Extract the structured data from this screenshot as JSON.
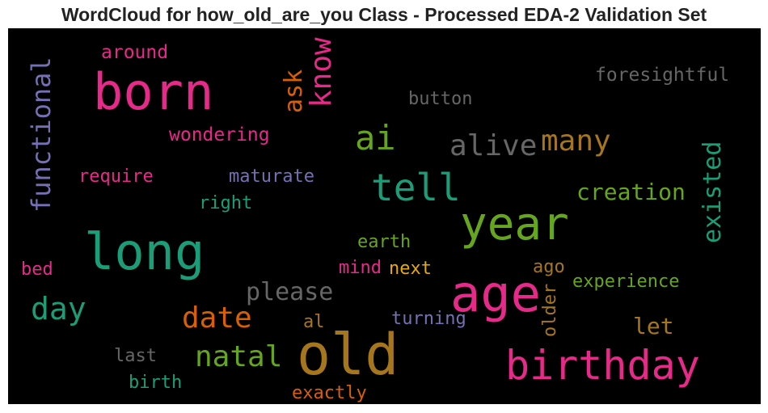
{
  "title": "WordCloud for how_old_are_you Class - Processed EDA-2 Validation Set",
  "words": [
    {
      "text": "born",
      "color": "#e7298a"
    },
    {
      "text": "around",
      "color": "#e7298a"
    },
    {
      "text": "functional",
      "color": "#7570b3"
    },
    {
      "text": "ask",
      "color": "#d95f02"
    },
    {
      "text": "know",
      "color": "#e7298a"
    },
    {
      "text": "button",
      "color": "#666666"
    },
    {
      "text": "foresightful",
      "color": "#666666"
    },
    {
      "text": "wondering",
      "color": "#e7298a"
    },
    {
      "text": "ai",
      "color": "#66a61e"
    },
    {
      "text": "alive",
      "color": "#666666"
    },
    {
      "text": "many",
      "color": "#a6761d"
    },
    {
      "text": "require",
      "color": "#e7298a"
    },
    {
      "text": "maturate",
      "color": "#7570b3"
    },
    {
      "text": "tell",
      "color": "#1b9e77"
    },
    {
      "text": "creation",
      "color": "#66a61e"
    },
    {
      "text": "existed",
      "color": "#1b9e77"
    },
    {
      "text": "right",
      "color": "#1b9e77"
    },
    {
      "text": "year",
      "color": "#66a61e"
    },
    {
      "text": "long",
      "color": "#1b9e77"
    },
    {
      "text": "earth",
      "color": "#66a61e"
    },
    {
      "text": "bed",
      "color": "#e7298a"
    },
    {
      "text": "mind",
      "color": "#e7298a"
    },
    {
      "text": "next",
      "color": "#e6ab02"
    },
    {
      "text": "ago",
      "color": "#a6761d"
    },
    {
      "text": "age",
      "color": "#e7298a"
    },
    {
      "text": "please",
      "color": "#666666"
    },
    {
      "text": "day",
      "color": "#1b9e77"
    },
    {
      "text": "experience",
      "color": "#66a61e"
    },
    {
      "text": "older",
      "color": "#a6761d"
    },
    {
      "text": "date",
      "color": "#d95f02"
    },
    {
      "text": "al",
      "color": "#a6761d"
    },
    {
      "text": "turning",
      "color": "#7570b3"
    },
    {
      "text": "let",
      "color": "#a6761d"
    },
    {
      "text": "last",
      "color": "#666666"
    },
    {
      "text": "natal",
      "color": "#66a61e"
    },
    {
      "text": "old",
      "color": "#a6761d"
    },
    {
      "text": "birthday",
      "color": "#e7298a"
    },
    {
      "text": "birth",
      "color": "#1b9e77"
    },
    {
      "text": "exactly",
      "color": "#d95f02"
    }
  ]
}
